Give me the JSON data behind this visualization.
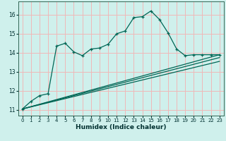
{
  "xlabel": "Humidex (Indice chaleur)",
  "bg_color": "#cff0ec",
  "grid_color": "#f0b8b8",
  "line_color": "#006655",
  "xlim": [
    -0.5,
    23.5
  ],
  "ylim": [
    10.7,
    16.7
  ],
  "yticks": [
    11,
    12,
    13,
    14,
    15,
    16
  ],
  "xticks": [
    0,
    1,
    2,
    3,
    4,
    5,
    6,
    7,
    8,
    9,
    10,
    11,
    12,
    13,
    14,
    15,
    16,
    17,
    18,
    19,
    20,
    21,
    22,
    23
  ],
  "main_x": [
    0,
    1,
    2,
    3,
    4,
    5,
    6,
    7,
    8,
    9,
    10,
    11,
    12,
    13,
    14,
    15,
    16,
    17,
    18,
    19,
    20,
    21,
    22,
    23
  ],
  "main_y": [
    11.05,
    11.45,
    11.75,
    11.85,
    14.35,
    14.5,
    14.05,
    13.85,
    14.2,
    14.25,
    14.45,
    15.0,
    15.15,
    15.85,
    15.9,
    16.2,
    15.75,
    15.05,
    14.2,
    13.85,
    13.9,
    13.9,
    13.9,
    13.9
  ],
  "line1_x": [
    0,
    23
  ],
  "line1_y": [
    11.05,
    13.9
  ],
  "line2_x": [
    0,
    23
  ],
  "line2_y": [
    11.05,
    13.75
  ],
  "line3_x": [
    0,
    23
  ],
  "line3_y": [
    11.05,
    13.55
  ]
}
